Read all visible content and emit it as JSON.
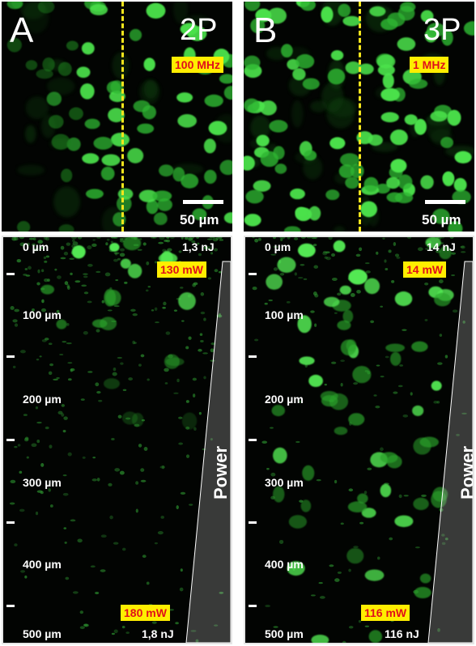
{
  "panels": {
    "A": {
      "letter": "A",
      "mode": "2P",
      "rep_rate": "100 MHz",
      "scale": "50 µm"
    },
    "B": {
      "letter": "B",
      "mode": "3P",
      "rep_rate": "1 MHz",
      "scale": "50 µm"
    }
  },
  "depth_axis": {
    "labels": [
      "0 µm",
      "100 µm",
      "200 µm",
      "300 µm",
      "400 µm",
      "500 µm"
    ]
  },
  "sideA": {
    "energy_top": "1,3 nJ",
    "power_top": "130 mW",
    "power_bottom": "180 mW",
    "energy_bottom": "1,8 nJ",
    "power_label": "Power"
  },
  "sideB": {
    "energy_top": "14 nJ",
    "power_top": "14 mW",
    "power_bottom": "116 mW",
    "energy_bottom": "116 nJ",
    "power_label": "Power"
  },
  "colors": {
    "cell_green": "#39d13a",
    "dashed_line": "#f5e61c",
    "tag_bg": "#ffee00",
    "tag_text": "#e0101a"
  }
}
